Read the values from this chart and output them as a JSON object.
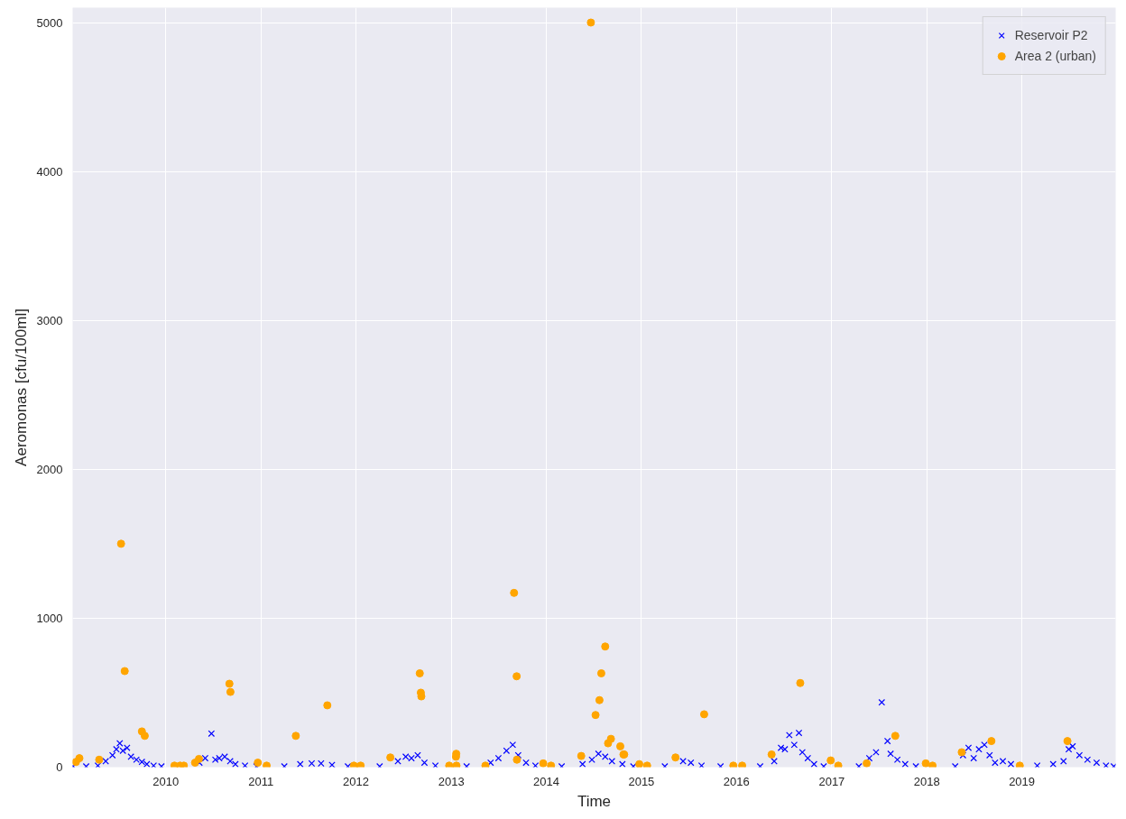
{
  "chart_data": {
    "type": "scatter",
    "xlabel": "Time",
    "ylabel": "Aeromonas [cfu/100ml]",
    "xlim": [
      "2009-01-08",
      "2019-12-27"
    ],
    "ylim": [
      0,
      5100
    ],
    "xticks": [
      {
        "value": "2010-01-01",
        "label": "2010"
      },
      {
        "value": "2011-01-01",
        "label": "2011"
      },
      {
        "value": "2012-01-01",
        "label": "2012"
      },
      {
        "value": "2013-01-01",
        "label": "2013"
      },
      {
        "value": "2014-01-01",
        "label": "2014"
      },
      {
        "value": "2015-01-01",
        "label": "2015"
      },
      {
        "value": "2016-01-01",
        "label": "2016"
      },
      {
        "value": "2017-01-01",
        "label": "2017"
      },
      {
        "value": "2018-01-01",
        "label": "2018"
      },
      {
        "value": "2019-01-01",
        "label": "2019"
      }
    ],
    "yticks": [
      0,
      1000,
      2000,
      3000,
      4000,
      5000
    ],
    "grid": true,
    "legend": "top right",
    "series": [
      {
        "name": "Reservoir P2",
        "color": "#0000ff",
        "marker": "cross",
        "x": [
          "2009-01-10",
          "2009-03-01",
          "2009-04-15",
          "2009-05-15",
          "2009-06-10",
          "2009-06-25",
          "2009-07-08",
          "2009-07-20",
          "2009-08-05",
          "2009-08-20",
          "2009-09-10",
          "2009-10-01",
          "2009-10-20",
          "2009-11-15",
          "2009-12-15",
          "2010-05-10",
          "2010-06-01",
          "2010-06-25",
          "2010-07-10",
          "2010-07-25",
          "2010-08-15",
          "2010-09-05",
          "2010-09-25",
          "2010-11-01",
          "2010-12-15",
          "2011-04-01",
          "2011-06-01",
          "2011-07-15",
          "2011-08-20",
          "2011-10-01",
          "2011-12-01",
          "2012-04-01",
          "2012-06-10",
          "2012-07-10",
          "2012-08-01",
          "2012-08-25",
          "2012-09-20",
          "2012-11-01",
          "2013-03-01",
          "2013-06-01",
          "2013-07-01",
          "2013-08-01",
          "2013-08-25",
          "2013-09-15",
          "2013-10-15",
          "2013-11-20",
          "2014-03-01",
          "2014-05-20",
          "2014-06-25",
          "2014-07-20",
          "2014-08-15",
          "2014-09-10",
          "2014-10-20",
          "2014-12-01",
          "2015-04-01",
          "2015-06-10",
          "2015-07-10",
          "2015-08-20",
          "2015-11-01",
          "2016-04-01",
          "2016-05-25",
          "2016-06-20",
          "2016-07-05",
          "2016-07-22",
          "2016-08-10",
          "2016-08-28",
          "2016-09-10",
          "2016-10-01",
          "2016-10-25",
          "2016-12-01",
          "2017-04-15",
          "2017-05-25",
          "2017-06-20",
          "2017-07-12",
          "2017-08-03",
          "2017-08-15",
          "2017-09-10",
          "2017-10-10",
          "2017-11-20",
          "2018-04-20",
          "2018-05-20",
          "2018-06-10",
          "2018-06-30",
          "2018-07-20",
          "2018-08-10",
          "2018-08-30",
          "2018-09-20",
          "2018-10-20",
          "2018-11-20",
          "2019-03-01",
          "2019-05-01",
          "2019-06-10",
          "2019-06-30",
          "2019-07-15",
          "2019-08-10",
          "2019-09-10",
          "2019-10-15",
          "2019-11-20",
          "2019-12-20"
        ],
        "values": [
          5,
          5,
          10,
          40,
          80,
          120,
          160,
          110,
          130,
          70,
          50,
          35,
          20,
          10,
          5,
          30,
          60,
          225,
          50,
          60,
          70,
          40,
          20,
          10,
          5,
          5,
          20,
          25,
          25,
          15,
          5,
          5,
          40,
          70,
          60,
          80,
          30,
          10,
          5,
          30,
          60,
          110,
          150,
          80,
          30,
          10,
          5,
          20,
          50,
          90,
          70,
          40,
          20,
          5,
          5,
          40,
          30,
          10,
          5,
          5,
          40,
          130,
          120,
          215,
          150,
          230,
          100,
          60,
          20,
          5,
          5,
          60,
          100,
          435,
          175,
          90,
          50,
          20,
          5,
          5,
          80,
          130,
          60,
          120,
          150,
          80,
          30,
          40,
          20,
          10,
          20,
          40,
          120,
          140,
          80,
          50,
          30,
          10,
          5
        ]
      },
      {
        "name": "Area 2 (urban)",
        "color": "#ffa500",
        "marker": "circle",
        "x": [
          "2009-01-21",
          "2009-02-03",
          "2009-04-20",
          "2009-07-13",
          "2009-07-27",
          "2009-10-01",
          "2009-10-12",
          "2010-02-03",
          "2010-02-25",
          "2010-03-11",
          "2010-04-23",
          "2010-05-08",
          "2010-09-02",
          "2010-09-06",
          "2010-12-20",
          "2011-01-23",
          "2011-05-15",
          "2011-09-13",
          "2011-12-24",
          "2012-01-19",
          "2012-05-12",
          "2012-09-02",
          "2012-09-06",
          "2012-09-08",
          "2012-12-24",
          "2013-01-19",
          "2013-01-20",
          "2013-01-21",
          "2013-05-12",
          "2013-08-30",
          "2013-09-09",
          "2013-09-10",
          "2013-12-20",
          "2014-01-19",
          "2014-05-15",
          "2014-06-21",
          "2014-07-09",
          "2014-07-24",
          "2014-07-31",
          "2014-08-15",
          "2014-08-26",
          "2014-09-06",
          "2014-10-12",
          "2014-10-24",
          "2014-10-27",
          "2014-12-24",
          "2015-01-23",
          "2015-05-12",
          "2015-08-30",
          "2015-12-20",
          "2016-01-23",
          "2016-05-15",
          "2016-09-02",
          "2016-12-28",
          "2017-01-26",
          "2017-05-15",
          "2017-09-02",
          "2017-12-28",
          "2018-01-23",
          "2018-05-15",
          "2018-09-06",
          "2018-12-24",
          "2019-06-25"
        ],
        "values": [
          35,
          60,
          50,
          1500,
          645,
          240,
          210,
          10,
          10,
          10,
          30,
          55,
          560,
          505,
          30,
          10,
          210,
          415,
          10,
          10,
          65,
          630,
          500,
          475,
          10,
          70,
          90,
          10,
          10,
          1170,
          610,
          50,
          25,
          10,
          75,
          5000,
          350,
          450,
          630,
          810,
          160,
          190,
          140,
          85,
          85,
          20,
          10,
          65,
          355,
          10,
          10,
          85,
          565,
          45,
          10,
          25,
          210,
          25,
          10,
          100,
          175,
          10,
          175
        ]
      }
    ]
  }
}
